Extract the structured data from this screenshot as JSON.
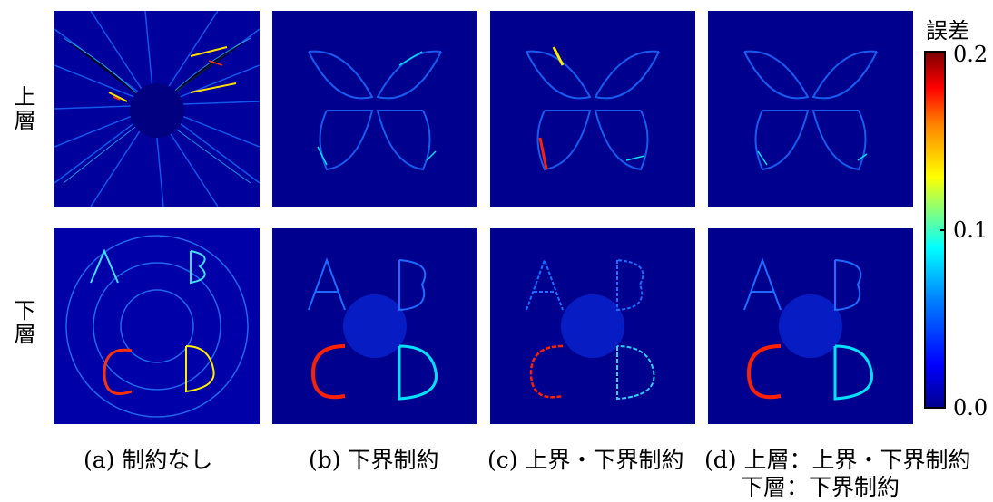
{
  "row_labels": {
    "top": "上層",
    "bottom": "下層"
  },
  "captions": {
    "a": "(a) 制約なし",
    "b": "(b) 下界制約",
    "c": "(c) 上界・下界制約",
    "d_line1": "(d) 上層：上界・下界制約",
    "d_line2": "下層：下界制約"
  },
  "colorbar": {
    "title": "誤差",
    "max": "0.2",
    "mid": "0.1",
    "min": "0.0"
  },
  "letters": [
    "A",
    "B",
    "C",
    "D"
  ],
  "colors": {
    "background": "#00008f",
    "low": "#0000ff",
    "mid": "#00ffff",
    "high": "#ff0000"
  }
}
